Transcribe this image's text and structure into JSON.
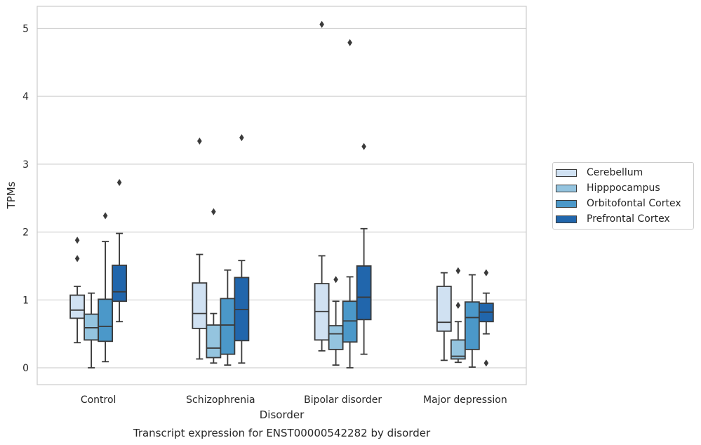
{
  "chart_data": {
    "type": "box",
    "title": "Transcript expression for ENST00000542282 by disorder",
    "xlabel": "Disorder",
    "ylabel": "TPMs",
    "ylim": [
      -0.25,
      5.32
    ],
    "yticks": [
      "0",
      "1",
      "2",
      "3",
      "4",
      "5"
    ],
    "categories": [
      "Control",
      "Schizophrenia",
      "Bipolar disorder",
      "Major depression"
    ],
    "grid": "horizontal",
    "legend_position": "right",
    "series": [
      {
        "name": "Cerebellum",
        "color": "#d0e1f2",
        "boxes": [
          {
            "whislo": 0.37,
            "q1": 0.73,
            "med": 0.85,
            "q3": 1.07,
            "whishi": 1.2,
            "fliers": [
              1.61,
              1.88
            ]
          },
          {
            "whislo": 0.13,
            "q1": 0.58,
            "med": 0.8,
            "q3": 1.25,
            "whishi": 1.67,
            "fliers": [
              3.34
            ]
          },
          {
            "whislo": 0.25,
            "q1": 0.41,
            "med": 0.83,
            "q3": 1.24,
            "whishi": 1.65,
            "fliers": [
              5.06
            ]
          },
          {
            "whislo": 0.11,
            "q1": 0.54,
            "med": 0.67,
            "q3": 1.2,
            "whishi": 1.4,
            "fliers": []
          }
        ]
      },
      {
        "name": "Hipppocampus",
        "color": "#94c4df",
        "boxes": [
          {
            "whislo": 0.0,
            "q1": 0.41,
            "med": 0.59,
            "q3": 0.79,
            "whishi": 1.1,
            "fliers": []
          },
          {
            "whislo": 0.07,
            "q1": 0.15,
            "med": 0.29,
            "q3": 0.63,
            "whishi": 0.8,
            "fliers": [
              2.3
            ]
          },
          {
            "whislo": 0.04,
            "q1": 0.27,
            "med": 0.5,
            "q3": 0.62,
            "whishi": 0.98,
            "fliers": [
              1.3
            ]
          },
          {
            "whislo": 0.08,
            "q1": 0.13,
            "med": 0.17,
            "q3": 0.41,
            "whishi": 0.68,
            "fliers": [
              0.92,
              1.43
            ]
          }
        ]
      },
      {
        "name": "Orbitofontal Cortex",
        "color": "#4b98c9",
        "boxes": [
          {
            "whislo": 0.09,
            "q1": 0.39,
            "med": 0.61,
            "q3": 1.01,
            "whishi": 1.86,
            "fliers": [
              2.24
            ]
          },
          {
            "whislo": 0.04,
            "q1": 0.2,
            "med": 0.63,
            "q3": 1.02,
            "whishi": 1.44,
            "fliers": []
          },
          {
            "whislo": 0.0,
            "q1": 0.38,
            "med": 0.69,
            "q3": 0.98,
            "whishi": 1.34,
            "fliers": [
              4.79
            ]
          },
          {
            "whislo": 0.01,
            "q1": 0.27,
            "med": 0.74,
            "q3": 0.97,
            "whishi": 1.37,
            "fliers": []
          }
        ]
      },
      {
        "name": "Prefrontal Cortex",
        "color": "#2166ac",
        "boxes": [
          {
            "whislo": 0.68,
            "q1": 0.98,
            "med": 1.12,
            "q3": 1.51,
            "whishi": 1.98,
            "fliers": [
              2.73
            ]
          },
          {
            "whislo": 0.07,
            "q1": 0.4,
            "med": 0.86,
            "q3": 1.33,
            "whishi": 1.58,
            "fliers": [
              3.39
            ]
          },
          {
            "whislo": 0.2,
            "q1": 0.71,
            "med": 1.04,
            "q3": 1.5,
            "whishi": 2.05,
            "fliers": [
              3.26
            ]
          },
          {
            "whislo": 0.5,
            "q1": 0.68,
            "med": 0.82,
            "q3": 0.95,
            "whishi": 1.1,
            "fliers": [
              0.07,
              1.4
            ]
          }
        ]
      }
    ]
  }
}
